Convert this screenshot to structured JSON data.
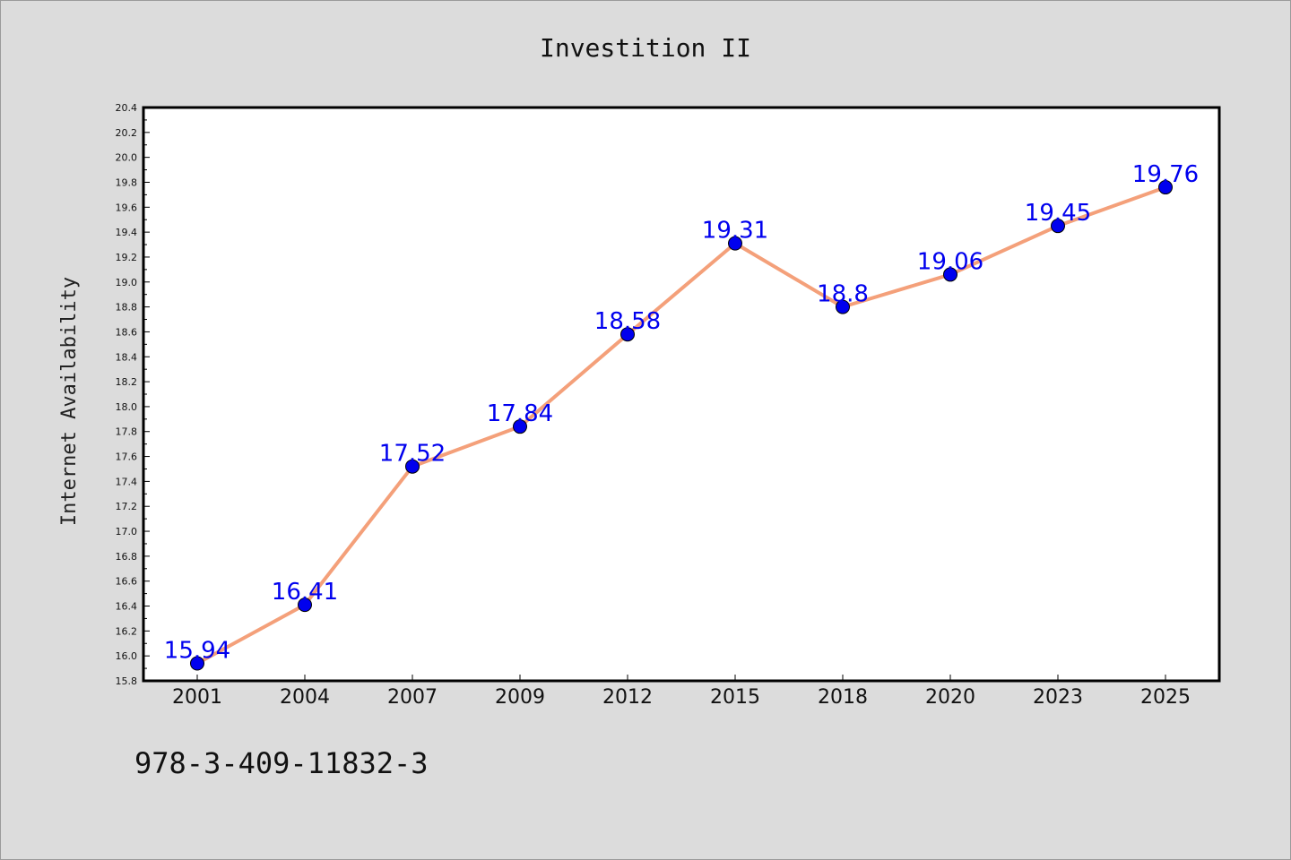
{
  "chart_data": {
    "type": "line",
    "title": "Investition II",
    "xlabel": "",
    "ylabel": "Internet Availability",
    "categories": [
      "2001",
      "2004",
      "2007",
      "2009",
      "2012",
      "2015",
      "2018",
      "2020",
      "2023",
      "2025"
    ],
    "series": [
      {
        "values": [
          15.94,
          16.41,
          17.52,
          17.84,
          18.58,
          19.31,
          18.8,
          19.06,
          19.45,
          19.76
        ],
        "labels": [
          "15.94",
          "16.41",
          "17.52",
          "17.84",
          "18.58",
          "19.31",
          "18.8",
          "19.06",
          "19.45",
          "19.76"
        ],
        "line_color": "#f4a07a",
        "marker_color": "#0000ee"
      }
    ],
    "ylim": [
      15.8,
      20.4
    ],
    "yticks": [
      "15.8",
      "16.0",
      "16.2",
      "16.4",
      "16.6",
      "16.8",
      "17.0",
      "17.2",
      "17.4",
      "17.6",
      "17.8",
      "18.0",
      "18.2",
      "18.4",
      "18.6",
      "18.8",
      "19.0",
      "19.2",
      "19.4",
      "19.6",
      "19.8",
      "20.0",
      "20.2",
      "20.4"
    ],
    "grid": false,
    "legend": "none"
  },
  "footer": {
    "isbn": "978-3-409-11832-3"
  },
  "colors": {
    "background": "#dcdcdc",
    "plot_background": "#ffffff",
    "line": "#f4a07a",
    "marker": "#0000ee",
    "data_label": "#0000ee"
  }
}
